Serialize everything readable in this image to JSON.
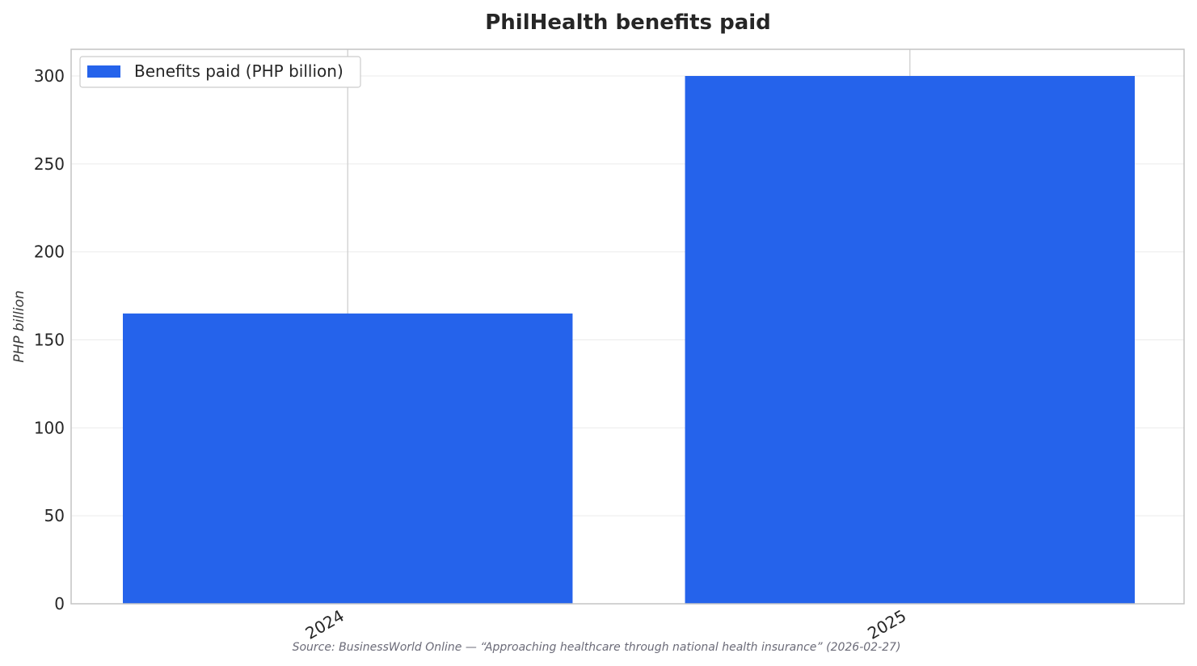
{
  "chart_data": {
    "type": "bar",
    "title": "PhilHealth benefits paid",
    "xlabel": "",
    "ylabel": "PHP billion",
    "categories": [
      "2024",
      "2025"
    ],
    "series": [
      {
        "name": "Benefits paid (PHP billion)",
        "values": [
          165,
          300
        ],
        "color": "#2563eb"
      }
    ],
    "ylim": [
      0,
      300
    ],
    "yticks": [
      0,
      50,
      100,
      150,
      200,
      250,
      300
    ],
    "grid": true,
    "legend": "top-left",
    "source": "Source: BusinessWorld Online — “Approaching healthcare through national health insurance” (2026-02-27)"
  }
}
